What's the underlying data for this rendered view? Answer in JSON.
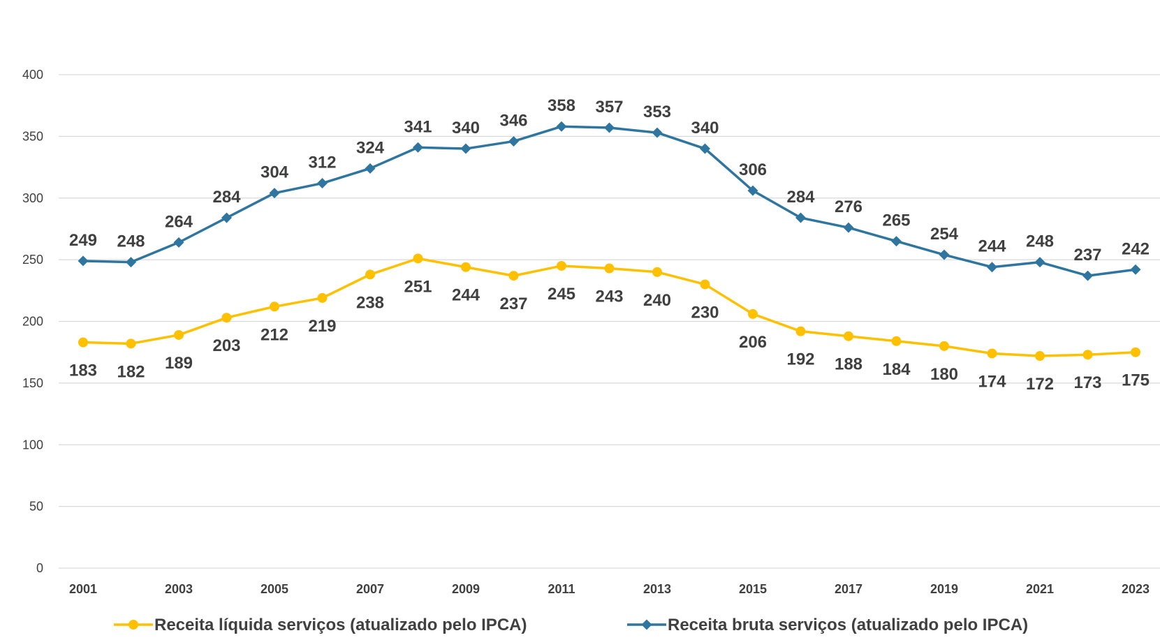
{
  "chart_data": {
    "type": "line",
    "title": "",
    "xlabel": "",
    "ylabel": "",
    "ylim": [
      0,
      400
    ],
    "y_ticks": [
      "0",
      "50",
      "100",
      "150",
      "200",
      "250",
      "300",
      "350",
      "400"
    ],
    "x": [
      "2001",
      "2002",
      "2003",
      "2004",
      "2005",
      "2006",
      "2007",
      "2008",
      "2009",
      "2010",
      "2011",
      "2012",
      "2013",
      "2014",
      "2015",
      "2016",
      "2017",
      "2018",
      "2019",
      "2020",
      "2021",
      "2022",
      "2023"
    ],
    "x_tick_labels": [
      "2001",
      "2003",
      "2005",
      "2007",
      "2009",
      "2011",
      "2013",
      "2015",
      "2017",
      "2019",
      "2021",
      "2023"
    ],
    "grid": true,
    "legend_position": "bottom",
    "series": [
      {
        "name": "Receita líquida serviços (atualizado pelo IPCA)",
        "color": "#FFC000",
        "marker": "circle",
        "label_position": "below",
        "values": [
          183,
          182,
          189,
          203,
          212,
          219,
          238,
          251,
          244,
          237,
          245,
          243,
          240,
          230,
          206,
          192,
          188,
          184,
          180,
          174,
          172,
          173,
          175
        ]
      },
      {
        "name": "Receita bruta serviços (atualizado pelo IPCA)",
        "color": "#2E75A0",
        "marker": "diamond",
        "label_position": "above",
        "values": [
          249,
          248,
          264,
          284,
          304,
          312,
          324,
          341,
          340,
          346,
          358,
          357,
          353,
          340,
          306,
          284,
          276,
          265,
          254,
          244,
          248,
          237,
          242
        ]
      }
    ]
  }
}
